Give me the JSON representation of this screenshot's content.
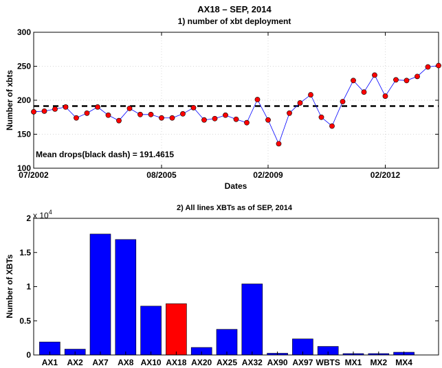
{
  "figure": {
    "suptitle": "AX18 – SEP, 2014"
  },
  "chart_data": [
    {
      "type": "line",
      "title": "1) number of xbt deployment",
      "xlabel": "Dates",
      "ylabel": "Number of xbts",
      "ylim": [
        100,
        300
      ],
      "yticks": [
        "100",
        "150",
        "200",
        "250",
        "300"
      ],
      "xtick_labels": [
        "07/2002",
        "08/2005",
        "02/2009",
        "02/2012"
      ],
      "grid": true,
      "mean_annotation": "Mean drops(black dash) = 191.4615",
      "mean": 191.4615,
      "mean_color": "#000000",
      "line_color": "#0000ff",
      "marker_color": "#ff0000",
      "series": [
        {
          "values": [
            183,
            184,
            187,
            190,
            174,
            181,
            190,
            178,
            170,
            188,
            179,
            179,
            174,
            174,
            180,
            189,
            171,
            173,
            178,
            172,
            167,
            201,
            171,
            136,
            181,
            196,
            208,
            175,
            162,
            198,
            229,
            212,
            237,
            206,
            230,
            229,
            235,
            249,
            251
          ]
        }
      ]
    },
    {
      "type": "bar",
      "title": "2) All lines XBTs as of SEP, 2014",
      "xlabel": "",
      "ylabel": "Number of XBTs",
      "y_multiplier_label": "x 10",
      "y_multiplier_exp": "4",
      "ylim": [
        0,
        2
      ],
      "yticks": [
        "0",
        "0.5",
        "1",
        "1.5",
        "2"
      ],
      "categories": [
        "AX1",
        "AX2",
        "AX7",
        "AX8",
        "AX10",
        "AX18",
        "AX20",
        "AX25",
        "AX32",
        "AX90",
        "AX97",
        "WBTS",
        "MX1",
        "MX2",
        "MX4"
      ],
      "values": [
        1900,
        850,
        17700,
        16900,
        7150,
        7500,
        1100,
        3750,
        10400,
        250,
        2350,
        1250,
        200,
        200,
        400
      ],
      "bar_color": "#0000ff",
      "highlight_color": "#ff0000",
      "highlight_category": "AX18"
    }
  ]
}
